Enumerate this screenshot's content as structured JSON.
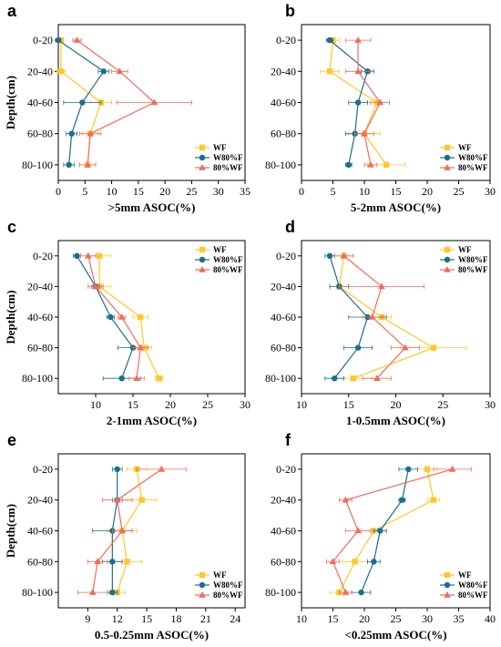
{
  "figure": {
    "colors": {
      "WF": "#FFC72C",
      "W80%F": "#1B6E8F",
      "80%WF": "#F26B5B"
    }
  },
  "chart_data": [
    {
      "type": "line",
      "panel": "a",
      "xlabel": ">5mm ASOC(%)",
      "ylabel": "Depth(cm)",
      "xlim": [
        0,
        35
      ],
      "xticks": [
        0,
        5,
        10,
        15,
        20,
        25,
        30,
        35
      ],
      "categories": [
        "0-20",
        "20-40",
        "40-60",
        "60-80",
        "80-100"
      ],
      "legend_position": "bottom-right",
      "series": [
        {
          "name": "WF",
          "marker": "square",
          "values": [
            0.5,
            0.5,
            8,
            6,
            5.5
          ],
          "errors": [
            0.5,
            0.8,
            2,
            1.5,
            1.5
          ]
        },
        {
          "name": "W80%F",
          "marker": "circle",
          "values": [
            0,
            8.5,
            4.5,
            2.5,
            2
          ],
          "errors": [
            0.5,
            1,
            3.5,
            1,
            1
          ]
        },
        {
          "name": "80%WF",
          "marker": "triangle",
          "values": [
            3.5,
            11.5,
            18,
            6,
            5.5
          ],
          "errors": [
            0.8,
            1.5,
            7,
            2,
            1.5
          ]
        }
      ]
    },
    {
      "type": "line",
      "panel": "b",
      "xlabel": "5-2mm ASOC(%)",
      "ylabel": "",
      "xlim": [
        0,
        30
      ],
      "xticks": [
        0,
        5,
        10,
        15,
        20,
        25,
        30
      ],
      "categories": [
        "0-20",
        "20-40",
        "40-60",
        "60-80",
        "80-100"
      ],
      "legend_position": "bottom-right",
      "series": [
        {
          "name": "WF",
          "marker": "square",
          "values": [
            5,
            4.5,
            12,
            10,
            13.5
          ],
          "errors": [
            1,
            1.5,
            2,
            2.5,
            3
          ]
        },
        {
          "name": "W80%F",
          "marker": "circle",
          "values": [
            4.5,
            10.5,
            9,
            8.5,
            7.5
          ],
          "errors": [
            0.5,
            1,
            1.5,
            1.5,
            0.5
          ]
        },
        {
          "name": "80%WF",
          "marker": "triangle",
          "values": [
            9,
            9,
            12.5,
            10,
            11
          ],
          "errors": [
            2,
            2,
            1.5,
            1.5,
            1
          ]
        }
      ]
    },
    {
      "type": "line",
      "panel": "c",
      "xlabel": "2-1mm ASOC(%)",
      "ylabel": "Depth(cm)",
      "xlim": [
        5,
        30
      ],
      "xticks": [
        10,
        15,
        20,
        25,
        30
      ],
      "categories": [
        "0-20",
        "20-40",
        "40-60",
        "60-80",
        "80-100"
      ],
      "legend_position": "top-right",
      "series": [
        {
          "name": "WF",
          "marker": "square",
          "values": [
            10.5,
            10.5,
            16,
            16.5,
            18.5
          ],
          "errors": [
            1.5,
            1.5,
            1,
            1,
            0.5
          ]
        },
        {
          "name": "W80%F",
          "marker": "circle",
          "values": [
            7.5,
            10,
            12,
            15,
            13.5
          ],
          "errors": [
            0.5,
            0.5,
            0.5,
            2,
            2.5
          ]
        },
        {
          "name": "80%WF",
          "marker": "triangle",
          "values": [
            9,
            10,
            13.5,
            16,
            15.5
          ],
          "errors": [
            1,
            1,
            0.5,
            1,
            1
          ]
        }
      ]
    },
    {
      "type": "line",
      "panel": "d",
      "xlabel": "1-0.5mm ASOC(%)",
      "ylabel": "",
      "xlim": [
        10,
        30
      ],
      "xticks": [
        10,
        15,
        20,
        25,
        30
      ],
      "categories": [
        "0-20",
        "20-40",
        "40-60",
        "60-80",
        "80-100"
      ],
      "legend_position": "top-right",
      "series": [
        {
          "name": "WF",
          "marker": "square",
          "values": [
            14.5,
            14,
            18.5,
            24,
            15.5
          ],
          "errors": [
            1,
            1,
            1,
            3.5,
            2
          ]
        },
        {
          "name": "W80%F",
          "marker": "circle",
          "values": [
            13,
            14,
            17,
            16,
            13.5
          ],
          "errors": [
            0.5,
            1,
            2,
            1.5,
            1
          ]
        },
        {
          "name": "80%WF",
          "marker": "triangle",
          "values": [
            14.5,
            18.5,
            17.5,
            21,
            18
          ],
          "errors": [
            1,
            4.5,
            1,
            1.5,
            1.5
          ]
        }
      ]
    },
    {
      "type": "line",
      "panel": "e",
      "xlabel": "0.5-0.25mm ASOC(%)",
      "ylabel": "Depth(cm)",
      "xlim": [
        6,
        25
      ],
      "xticks": [
        9,
        12,
        15,
        18,
        21,
        24
      ],
      "categories": [
        "0-20",
        "20-40",
        "40-60",
        "60-80",
        "80-100"
      ],
      "legend_position": "bottom-right",
      "series": [
        {
          "name": "WF",
          "marker": "square",
          "values": [
            14,
            14.5,
            12.5,
            13,
            12
          ],
          "errors": [
            1,
            1.5,
            1.5,
            1.5,
            0.8
          ]
        },
        {
          "name": "W80%F",
          "marker": "circle",
          "values": [
            12,
            12,
            11.5,
            11.5,
            11.5
          ],
          "errors": [
            0.5,
            0.5,
            2,
            1,
            0.5
          ]
        },
        {
          "name": "80%WF",
          "marker": "triangle",
          "values": [
            16.5,
            12,
            12.5,
            10,
            9.5
          ],
          "errors": [
            2.5,
            1.5,
            1,
            1,
            1.5
          ]
        }
      ]
    },
    {
      "type": "line",
      "panel": "f",
      "xlabel": "<0.25mm ASOC(%)",
      "ylabel": "",
      "xlim": [
        10,
        40
      ],
      "xticks": [
        10,
        15,
        20,
        25,
        30,
        35,
        40
      ],
      "categories": [
        "0-20",
        "20-40",
        "40-60",
        "60-80",
        "80-100"
      ],
      "legend_position": "bottom-right",
      "series": [
        {
          "name": "WF",
          "marker": "square",
          "values": [
            30,
            31,
            21.5,
            18.5,
            16
          ],
          "errors": [
            1.5,
            1,
            2,
            2,
            1.5
          ]
        },
        {
          "name": "W80%F",
          "marker": "circle",
          "values": [
            27,
            26,
            22.5,
            21.5,
            19.5
          ],
          "errors": [
            1.5,
            0.5,
            1,
            1,
            1.5
          ]
        },
        {
          "name": "80%WF",
          "marker": "triangle",
          "values": [
            34,
            17,
            19,
            15,
            17
          ],
          "errors": [
            3,
            1,
            2,
            1,
            1
          ]
        }
      ]
    }
  ]
}
